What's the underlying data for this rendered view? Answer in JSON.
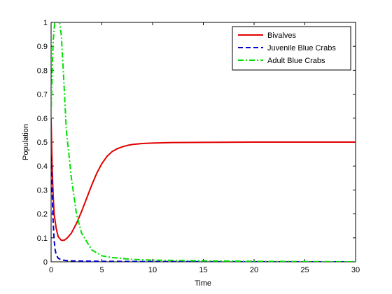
{
  "chart_data": {
    "type": "line",
    "title": "",
    "xlabel": "Time",
    "ylabel": "Population",
    "xlim": [
      0,
      30
    ],
    "ylim": [
      0,
      1
    ],
    "xticks": [
      0,
      5,
      10,
      15,
      20,
      25,
      30
    ],
    "yticks": [
      0,
      0.1,
      0.2,
      0.3,
      0.4,
      0.5,
      0.6,
      0.7,
      0.8,
      0.9,
      1
    ],
    "grid": false,
    "legend_position": "top-right",
    "series": [
      {
        "name": "Bivalves",
        "color": "#e00000",
        "dash": "solid",
        "x": [
          0,
          0.1,
          0.2,
          0.3,
          0.5,
          0.7,
          1.0,
          1.3,
          1.6,
          2.0,
          2.5,
          3.0,
          3.5,
          4.0,
          4.5,
          5.0,
          5.5,
          6.0,
          6.5,
          7.0,
          7.5,
          8.0,
          9.0,
          10.0,
          12.0,
          15.0,
          20.0,
          25.0,
          30.0
        ],
        "y": [
          0.6,
          0.4,
          0.28,
          0.2,
          0.14,
          0.105,
          0.09,
          0.09,
          0.1,
          0.12,
          0.16,
          0.21,
          0.265,
          0.32,
          0.37,
          0.41,
          0.44,
          0.46,
          0.472,
          0.48,
          0.486,
          0.49,
          0.494,
          0.496,
          0.498,
          0.499,
          0.5,
          0.5,
          0.5
        ]
      },
      {
        "name": "Juvenile Blue Crabs",
        "color": "#0000c8",
        "dash": "dashed",
        "x": [
          0,
          0.1,
          0.2,
          0.3,
          0.4,
          0.5,
          0.7,
          1.0,
          1.5,
          2.0,
          3.0,
          5.0,
          10.0,
          20.0,
          30.0
        ],
        "y": [
          0.44,
          0.3,
          0.17,
          0.09,
          0.05,
          0.03,
          0.015,
          0.008,
          0.005,
          0.004,
          0.003,
          0.002,
          0.001,
          0.0,
          0.0
        ]
      },
      {
        "name": "Adult Blue Crabs",
        "color": "#00e000",
        "dash": "dashdot",
        "x": [
          0,
          0.1,
          0.2,
          0.4,
          0.6,
          0.8,
          1.0,
          1.2,
          1.5,
          2.0,
          2.5,
          3.0,
          4.0,
          5.0,
          6.0,
          8.0,
          10.0,
          15.0,
          20.0,
          30.0
        ],
        "y": [
          0.6,
          0.78,
          0.92,
          1.02,
          1.04,
          1.01,
          0.95,
          0.8,
          0.55,
          0.35,
          0.2,
          0.12,
          0.05,
          0.025,
          0.018,
          0.01,
          0.007,
          0.004,
          0.002,
          0.0
        ]
      }
    ]
  }
}
